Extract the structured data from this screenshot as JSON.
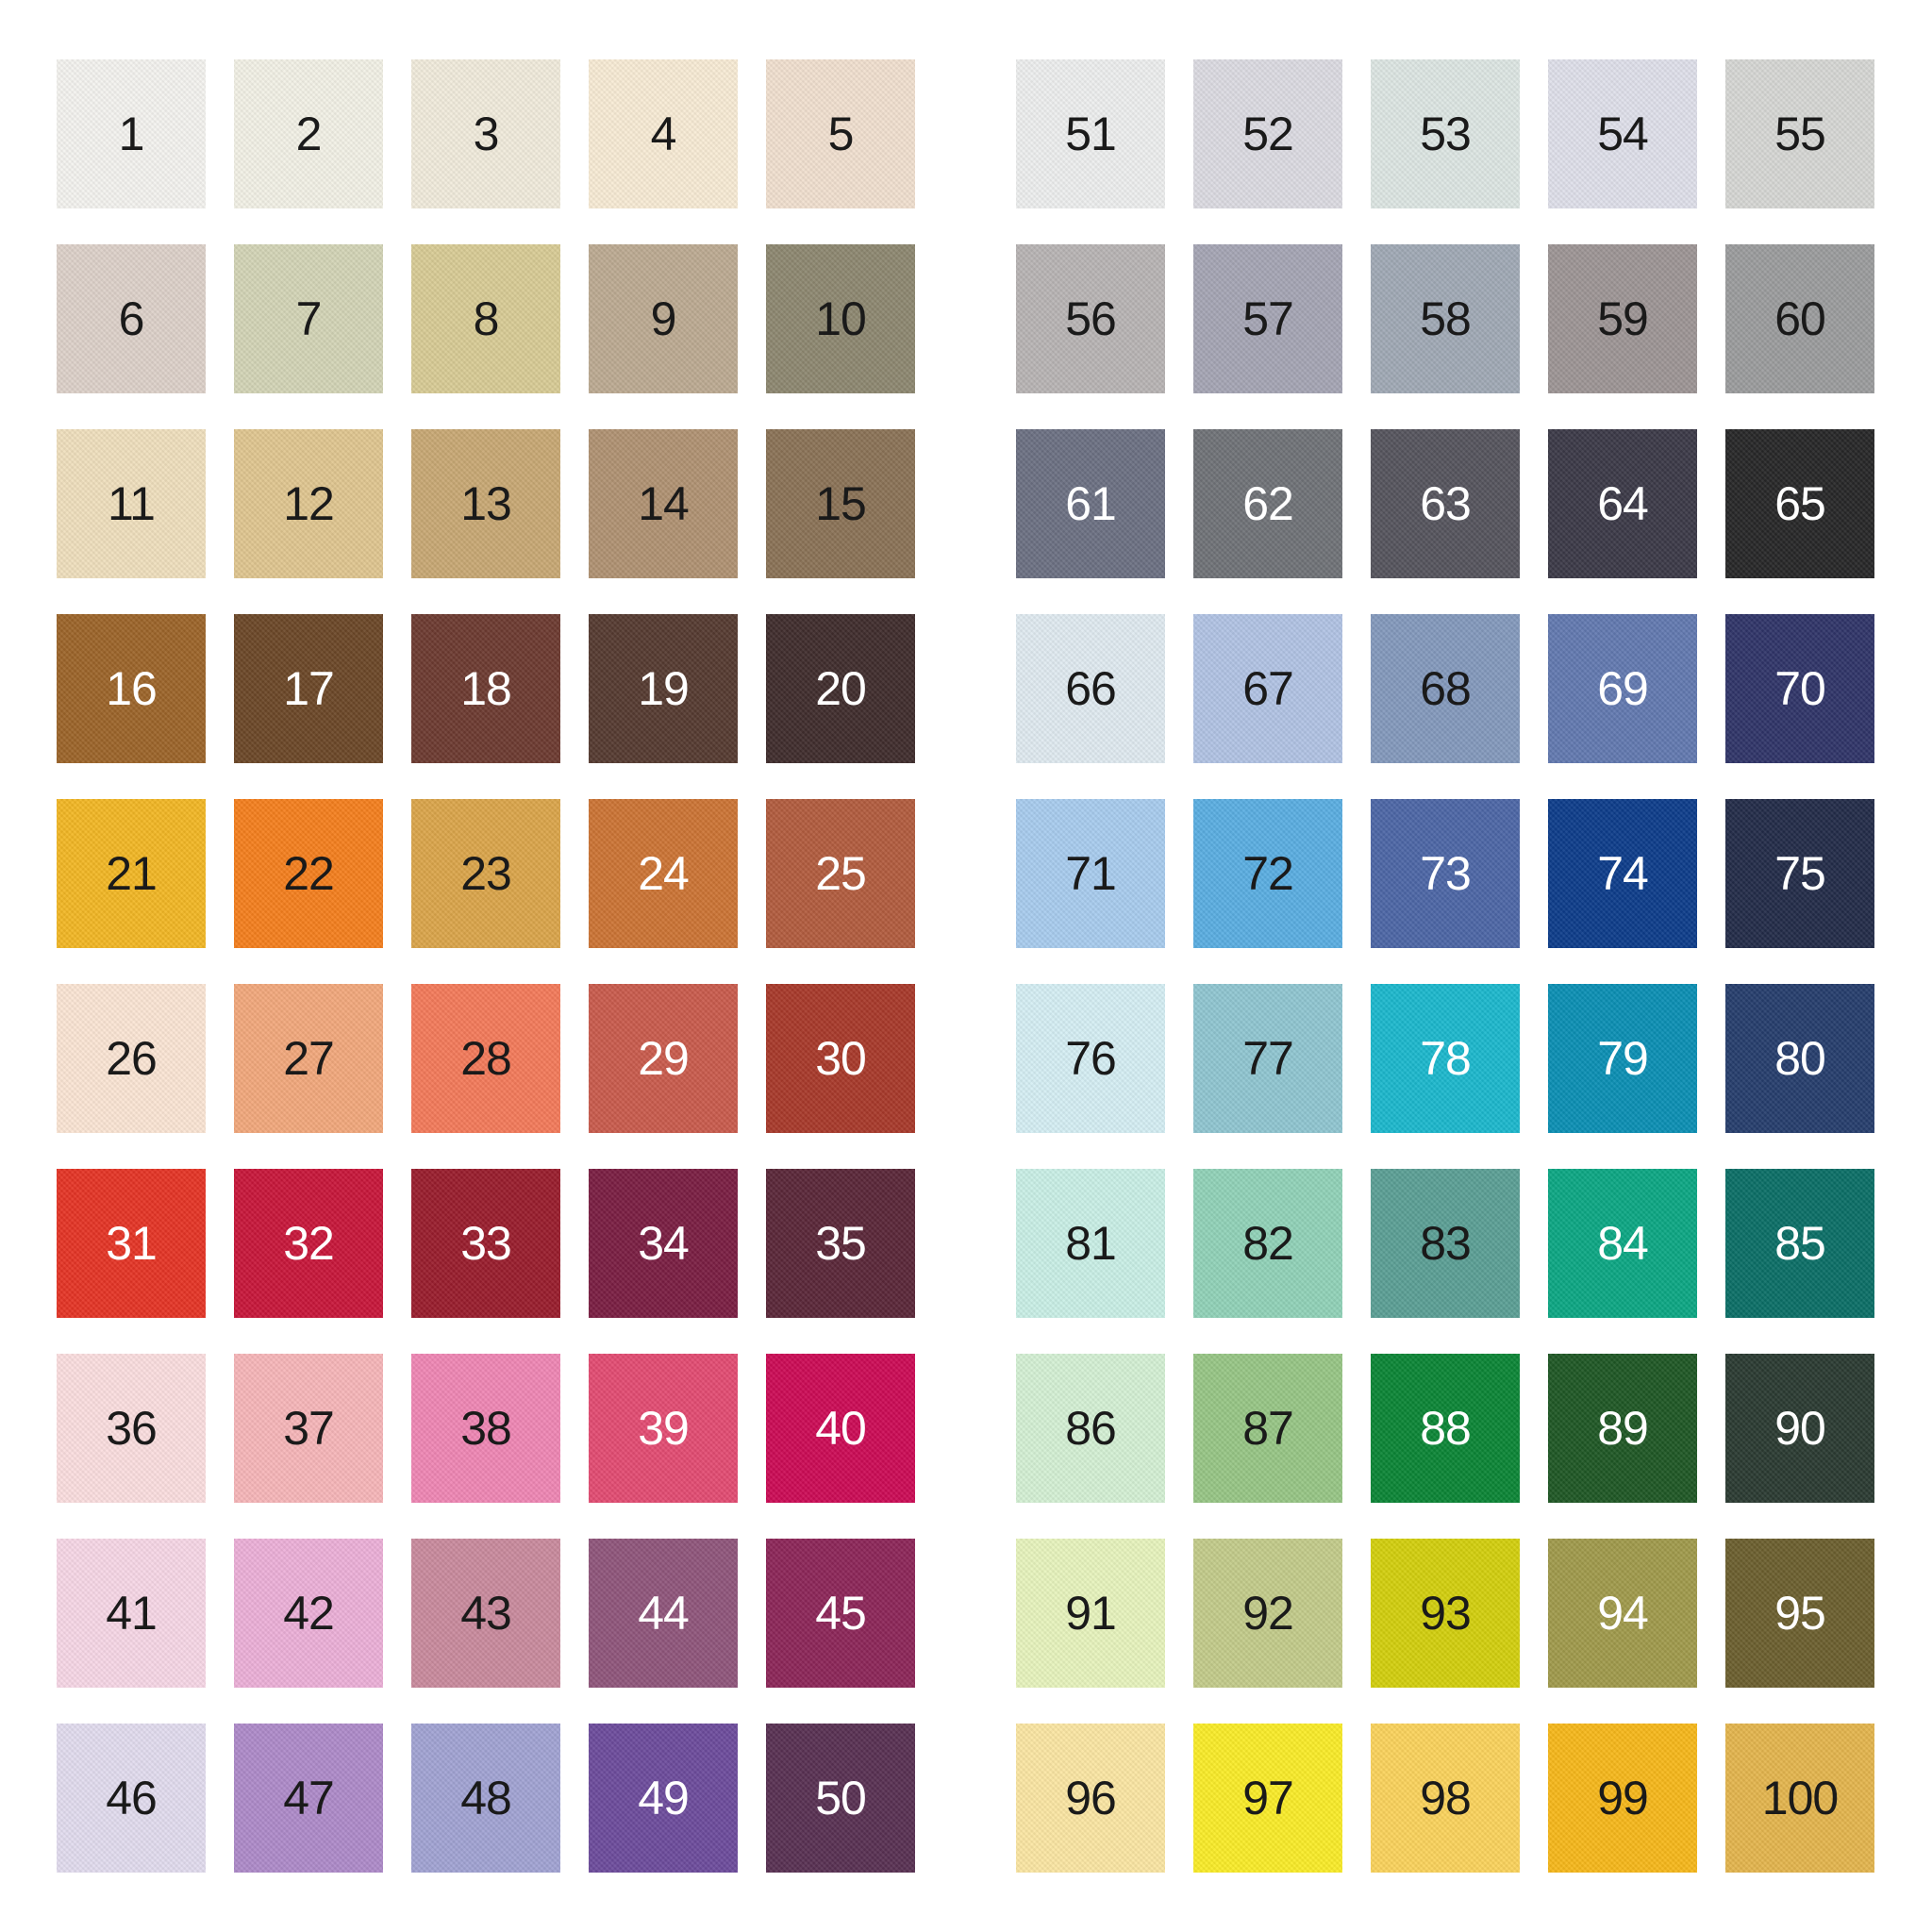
{
  "swatches": [
    {
      "number": "1",
      "color": "#f4f3ef",
      "text": "dark"
    },
    {
      "number": "2",
      "color": "#f2f1e6",
      "text": "dark"
    },
    {
      "number": "3",
      "color": "#f1ebdc",
      "text": "dark"
    },
    {
      "number": "4",
      "color": "#f8ebd5",
      "text": "dark"
    },
    {
      "number": "5",
      "color": "#f1e0cf",
      "text": "dark"
    },
    {
      "number": "6",
      "color": "#ddd1c9",
      "text": "dark"
    },
    {
      "number": "7",
      "color": "#d3d4b6",
      "text": "dark"
    },
    {
      "number": "8",
      "color": "#d8cb95",
      "text": "dark"
    },
    {
      "number": "9",
      "color": "#bcaa92",
      "text": "dark"
    },
    {
      "number": "10",
      "color": "#8d8770",
      "text": "dark"
    },
    {
      "number": "11",
      "color": "#efdfbd",
      "text": "dark"
    },
    {
      "number": "12",
      "color": "#e0c690",
      "text": "dark"
    },
    {
      "number": "13",
      "color": "#c8a874",
      "text": "dark"
    },
    {
      "number": "14",
      "color": "#b09272",
      "text": "dark"
    },
    {
      "number": "15",
      "color": "#8a7256",
      "text": "dark"
    },
    {
      "number": "16",
      "color": "#9c6429",
      "text": "light"
    },
    {
      "number": "17",
      "color": "#6b4727",
      "text": "light"
    },
    {
      "number": "18",
      "color": "#6c3a30",
      "text": "light"
    },
    {
      "number": "19",
      "color": "#553a30",
      "text": "light"
    },
    {
      "number": "20",
      "color": "#3f2c2c",
      "text": "light"
    },
    {
      "number": "21",
      "color": "#f2b724",
      "text": "dark"
    },
    {
      "number": "22",
      "color": "#f57f1d",
      "text": "dark"
    },
    {
      "number": "23",
      "color": "#dba54a",
      "text": "dark"
    },
    {
      "number": "24",
      "color": "#cc7434",
      "text": "light"
    },
    {
      "number": "25",
      "color": "#b25c3e",
      "text": "light"
    },
    {
      "number": "26",
      "color": "#fbe5d4",
      "text": "dark"
    },
    {
      "number": "27",
      "color": "#f2a87c",
      "text": "dark"
    },
    {
      "number": "28",
      "color": "#f47a5a",
      "text": "dark"
    },
    {
      "number": "29",
      "color": "#c95b4c",
      "text": "light"
    },
    {
      "number": "30",
      "color": "#a8392a",
      "text": "light"
    },
    {
      "number": "31",
      "color": "#e53425",
      "text": "light"
    },
    {
      "number": "32",
      "color": "#c8163a",
      "text": "light"
    },
    {
      "number": "33",
      "color": "#991c2c",
      "text": "light"
    },
    {
      "number": "34",
      "color": "#7a1d42",
      "text": "light"
    },
    {
      "number": "35",
      "color": "#5a2638",
      "text": "light"
    },
    {
      "number": "36",
      "color": "#fbdedf",
      "text": "dark"
    },
    {
      "number": "37",
      "color": "#f7b6b9",
      "text": "dark"
    },
    {
      "number": "38",
      "color": "#ef86b4",
      "text": "dark"
    },
    {
      "number": "39",
      "color": "#e34b72",
      "text": "light"
    },
    {
      "number": "40",
      "color": "#cc0a55",
      "text": "light"
    },
    {
      "number": "41",
      "color": "#f7d7e6",
      "text": "dark"
    },
    {
      "number": "42",
      "color": "#ecb0d8",
      "text": "dark"
    },
    {
      "number": "43",
      "color": "#c98a9d",
      "text": "dark"
    },
    {
      "number": "44",
      "color": "#8f557b",
      "text": "light"
    },
    {
      "number": "45",
      "color": "#8c2558",
      "text": "light"
    },
    {
      "number": "46",
      "color": "#e2dcee",
      "text": "dark"
    },
    {
      "number": "47",
      "color": "#ae8ac9",
      "text": "dark"
    },
    {
      "number": "48",
      "color": "#a1a3d3",
      "text": "dark"
    },
    {
      "number": "49",
      "color": "#6c4b9c",
      "text": "light"
    },
    {
      "number": "50",
      "color": "#583052",
      "text": "light"
    },
    {
      "number": "51",
      "color": "#edeeee",
      "text": "dark"
    },
    {
      "number": "52",
      "color": "#dcdbe2",
      "text": "dark"
    },
    {
      "number": "53",
      "color": "#dde6e3",
      "text": "dark"
    },
    {
      "number": "54",
      "color": "#dfe0ea",
      "text": "dark"
    },
    {
      "number": "55",
      "color": "#d6d7d4",
      "text": "dark"
    },
    {
      "number": "56",
      "color": "#b8b4b4",
      "text": "dark"
    },
    {
      "number": "57",
      "color": "#a5a5b4",
      "text": "dark"
    },
    {
      "number": "58",
      "color": "#a0a9b5",
      "text": "dark"
    },
    {
      "number": "59",
      "color": "#9d9595",
      "text": "dark"
    },
    {
      "number": "60",
      "color": "#9b9c9d",
      "text": "dark"
    },
    {
      "number": "61",
      "color": "#6b7082",
      "text": "light"
    },
    {
      "number": "62",
      "color": "#6f7277",
      "text": "light"
    },
    {
      "number": "63",
      "color": "#55545d",
      "text": "light"
    },
    {
      "number": "64",
      "color": "#3b3947",
      "text": "light"
    },
    {
      "number": "65",
      "color": "#262627",
      "text": "light"
    },
    {
      "number": "66",
      "color": "#e0eaf0",
      "text": "dark"
    },
    {
      "number": "67",
      "color": "#b1c3e4",
      "text": "dark"
    },
    {
      "number": "68",
      "color": "#8399bc",
      "text": "dark"
    },
    {
      "number": "69",
      "color": "#6279b0",
      "text": "light"
    },
    {
      "number": "70",
      "color": "#2f3468",
      "text": "light"
    },
    {
      "number": "71",
      "color": "#a8ccee",
      "text": "dark"
    },
    {
      "number": "72",
      "color": "#5aaee2",
      "text": "dark"
    },
    {
      "number": "73",
      "color": "#4c66a6",
      "text": "light"
    },
    {
      "number": "74",
      "color": "#0c3c8a",
      "text": "light"
    },
    {
      "number": "75",
      "color": "#222b48",
      "text": "light"
    },
    {
      "number": "76",
      "color": "#d5eef4",
      "text": "dark"
    },
    {
      "number": "77",
      "color": "#90c6d1",
      "text": "dark"
    },
    {
      "number": "78",
      "color": "#1bb8cd",
      "text": "light"
    },
    {
      "number": "79",
      "color": "#0a8fb4",
      "text": "light"
    },
    {
      "number": "80",
      "color": "#253d6c",
      "text": "light"
    },
    {
      "number": "81",
      "color": "#c9efe6",
      "text": "dark"
    },
    {
      "number": "82",
      "color": "#91d2b8",
      "text": "dark"
    },
    {
      "number": "83",
      "color": "#5b9f95",
      "text": "dark"
    },
    {
      "number": "84",
      "color": "#0ba783",
      "text": "light"
    },
    {
      "number": "85",
      "color": "#0a6e66",
      "text": "light"
    },
    {
      "number": "86",
      "color": "#d4f0d4",
      "text": "dark"
    },
    {
      "number": "87",
      "color": "#97c685",
      "text": "dark"
    },
    {
      "number": "88",
      "color": "#0a8535",
      "text": "light"
    },
    {
      "number": "89",
      "color": "#1e5724",
      "text": "light"
    },
    {
      "number": "90",
      "color": "#2a3a31",
      "text": "light"
    },
    {
      "number": "91",
      "color": "#e7f4bd",
      "text": "dark"
    },
    {
      "number": "92",
      "color": "#c3cb8a",
      "text": "dark"
    },
    {
      "number": "93",
      "color": "#d3cf0d",
      "text": "dark"
    },
    {
      "number": "94",
      "color": "#a09a4b",
      "text": "light"
    },
    {
      "number": "95",
      "color": "#6b5f2e",
      "text": "light"
    },
    {
      "number": "96",
      "color": "#fbe6a3",
      "text": "dark"
    },
    {
      "number": "97",
      "color": "#faec28",
      "text": "dark"
    },
    {
      "number": "98",
      "color": "#fbd35c",
      "text": "dark"
    },
    {
      "number": "99",
      "color": "#f7b81a",
      "text": "dark"
    },
    {
      "number": "100",
      "color": "#e4b54d",
      "text": "dark"
    }
  ],
  "text_colors": {
    "dark": "#1a1a1a",
    "light": "#ffffff"
  }
}
